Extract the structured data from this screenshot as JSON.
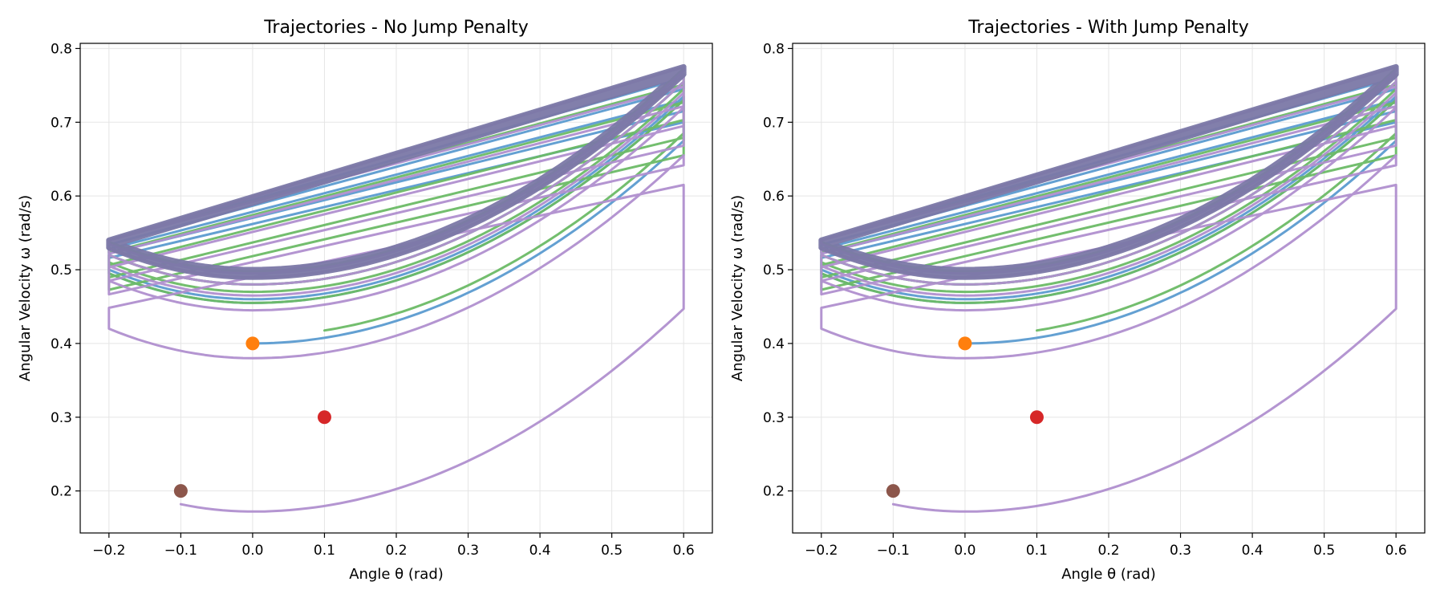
{
  "figure": {
    "panels": [
      {
        "title": "Trajectories - No Jump Penalty",
        "xlabel": "Angle θ (rad)",
        "ylabel": "Angular Velocity ω (rad/s)"
      },
      {
        "title": "Trajectories - With Jump Penalty",
        "xlabel": "Angle θ (rad)",
        "ylabel": "Angular Velocity ω (rad/s)"
      }
    ]
  },
  "chart_data": [
    {
      "type": "line",
      "title": "Trajectories - No Jump Penalty",
      "xlabel": "Angle θ (rad)",
      "ylabel": "Angular Velocity ω (rad/s)",
      "xlim": [
        -0.24,
        0.64
      ],
      "ylim": [
        0.143,
        0.807
      ],
      "xticks": [
        -0.2,
        -0.1,
        0.0,
        0.1,
        0.2,
        0.3,
        0.4,
        0.5,
        0.6
      ],
      "xtick_labels": [
        "−0.2",
        "−0.1",
        "0.0",
        "0.1",
        "0.2",
        "0.3",
        "0.4",
        "0.5",
        "0.6"
      ],
      "yticks": [
        0.2,
        0.3,
        0.4,
        0.5,
        0.6,
        0.7,
        0.8
      ],
      "ytick_labels": [
        "0.2",
        "0.3",
        "0.4",
        "0.5",
        "0.6",
        "0.7",
        "0.8"
      ],
      "grid": true,
      "legend": "none",
      "colors": {
        "blue": "#5b9bd0",
        "green": "#6cbb66",
        "purple": "#b08fcf",
        "gray": "#7b78a6"
      },
      "starts": [
        {
          "x": 0.0,
          "y": 0.4,
          "color": "#ff7f0e"
        },
        {
          "x": 0.1,
          "y": 0.3,
          "color": "#d62728"
        },
        {
          "x": -0.1,
          "y": 0.2,
          "color": "#8c564b"
        }
      ],
      "series": [
        {
          "color": "#5b9bd0",
          "start": [
            0.0,
            0.4
          ],
          "bottoms": [
            0.4,
            0.455,
            0.46,
            0.48,
            0.49,
            0.495
          ],
          "omega_right_min": 0.7,
          "omega_right_max": 0.775,
          "omega_left_min": 0.51,
          "omega_left_max": 0.54
        },
        {
          "color": "#6cbb66",
          "start": [
            0.1,
            0.3
          ],
          "bottoms": [
            0.41,
            0.455,
            0.47,
            0.48,
            0.49,
            0.498
          ],
          "omega_right_min": 0.655,
          "omega_right_max": 0.775,
          "omega_left_min": 0.456,
          "omega_left_max": 0.54
        },
        {
          "color": "#b08fcf",
          "start": [
            -0.1,
            0.2
          ],
          "bottoms": [
            0.172,
            0.38,
            0.445,
            0.465,
            0.48,
            0.49,
            0.495
          ],
          "omega_right_min": 0.615,
          "omega_right_max": 0.775,
          "omega_left_min": 0.43,
          "omega_left_max": 0.54
        },
        {
          "color": "#7b78a6",
          "bottoms": [
            0.49,
            0.492,
            0.494,
            0.496,
            0.498,
            0.5
          ],
          "omega_right_min": 0.765,
          "omega_right_max": 0.775,
          "omega_left_min": 0.53,
          "omega_left_max": 0.54
        }
      ]
    },
    {
      "type": "line",
      "title": "Trajectories - With Jump Penalty",
      "xlabel": "Angle θ (rad)",
      "ylabel": "Angular Velocity ω (rad/s)",
      "xlim": [
        -0.24,
        0.64
      ],
      "ylim": [
        0.143,
        0.807
      ],
      "xticks": [
        -0.2,
        -0.1,
        0.0,
        0.1,
        0.2,
        0.3,
        0.4,
        0.5,
        0.6
      ],
      "xtick_labels": [
        "−0.2",
        "−0.1",
        "0.0",
        "0.1",
        "0.2",
        "0.3",
        "0.4",
        "0.5",
        "0.6"
      ],
      "yticks": [
        0.2,
        0.3,
        0.4,
        0.5,
        0.6,
        0.7,
        0.8
      ],
      "ytick_labels": [
        "0.2",
        "0.3",
        "0.4",
        "0.5",
        "0.6",
        "0.7",
        "0.8"
      ],
      "grid": true,
      "legend": "none",
      "colors": {
        "blue": "#5b9bd0",
        "green": "#6cbb66",
        "purple": "#b08fcf",
        "gray": "#7b78a6"
      },
      "starts": [
        {
          "x": 0.0,
          "y": 0.4,
          "color": "#ff7f0e"
        },
        {
          "x": 0.1,
          "y": 0.3,
          "color": "#d62728"
        },
        {
          "x": -0.1,
          "y": 0.2,
          "color": "#8c564b"
        }
      ],
      "series": [
        {
          "color": "#5b9bd0",
          "start": [
            0.0,
            0.4
          ],
          "bottoms": [
            0.4,
            0.455,
            0.46,
            0.48,
            0.49,
            0.495
          ],
          "omega_right_min": 0.7,
          "omega_right_max": 0.775,
          "omega_left_min": 0.51,
          "omega_left_max": 0.54
        },
        {
          "color": "#6cbb66",
          "start": [
            0.1,
            0.3
          ],
          "bottoms": [
            0.41,
            0.455,
            0.47,
            0.48,
            0.49,
            0.498
          ],
          "omega_right_min": 0.655,
          "omega_right_max": 0.775,
          "omega_left_min": 0.456,
          "omega_left_max": 0.54
        },
        {
          "color": "#b08fcf",
          "start": [
            -0.1,
            0.2
          ],
          "bottoms": [
            0.172,
            0.38,
            0.445,
            0.465,
            0.48,
            0.49,
            0.495
          ],
          "omega_right_min": 0.615,
          "omega_right_max": 0.775,
          "omega_left_min": 0.43,
          "omega_left_max": 0.54
        },
        {
          "color": "#7b78a6",
          "bottoms": [
            0.49,
            0.492,
            0.494,
            0.496,
            0.498,
            0.5
          ],
          "omega_right_min": 0.765,
          "omega_right_max": 0.775,
          "omega_left_min": 0.53,
          "omega_left_max": 0.54
        }
      ]
    }
  ]
}
